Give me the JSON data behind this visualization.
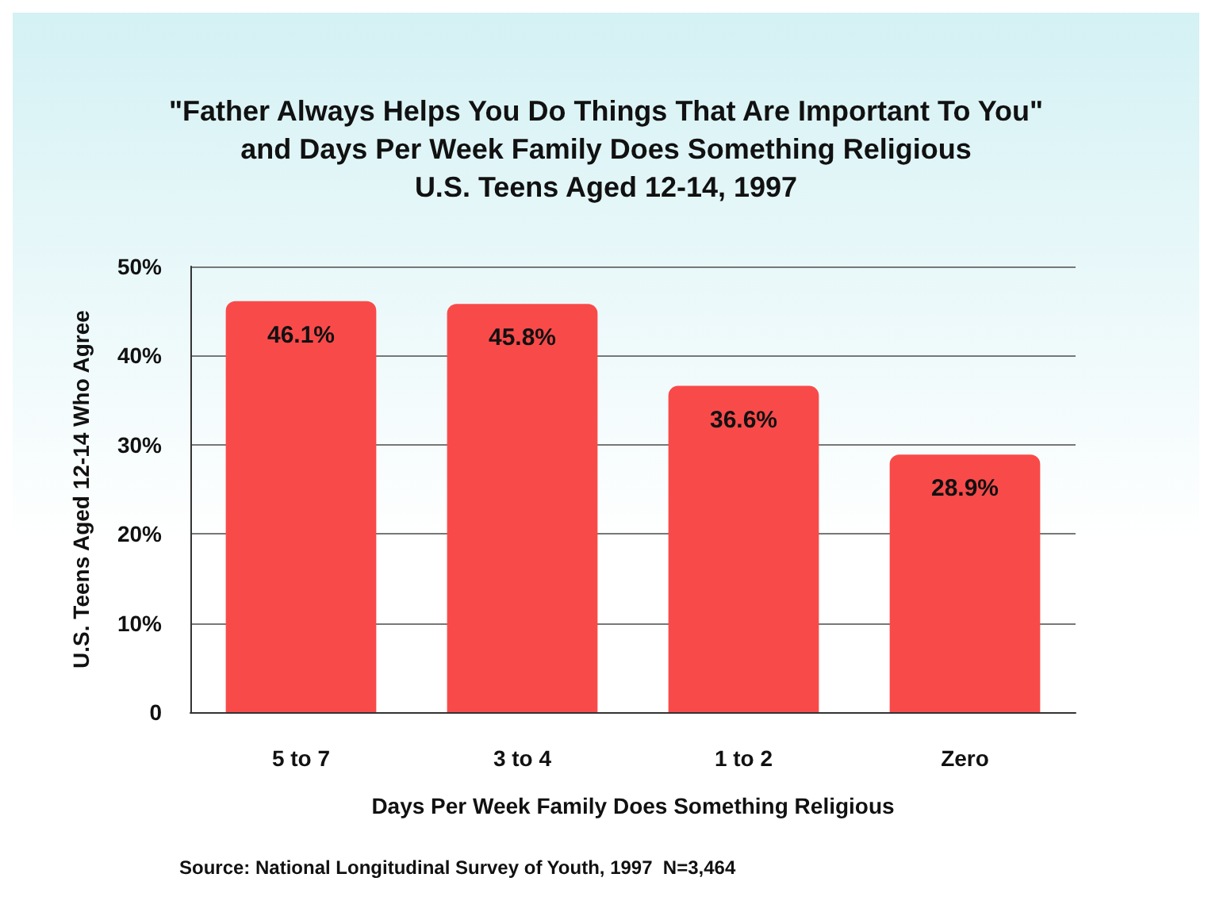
{
  "chart_data": {
    "type": "bar",
    "title": "\"Father Always Helps You Do Things That Are Important To You\"\nand Days Per Week Family Does Something Religious\nU.S. Teens Aged 12-14, 1997",
    "xlabel": "Days Per Week Family Does Something Religious",
    "ylabel": "U.S. Teens Aged 12-14 Who Agree",
    "categories": [
      "5 to 7",
      "3 to 4",
      "1 to 2",
      "Zero"
    ],
    "values": [
      46.1,
      45.8,
      36.6,
      28.9
    ],
    "value_labels": [
      "46.1%",
      "45.8%",
      "36.6%",
      "28.9%"
    ],
    "color": "#f94a4a",
    "ylim": [
      0,
      50
    ],
    "yticks": [
      0,
      {
        "value": 10,
        "label": "10%"
      },
      {
        "value": 20,
        "label": "20%"
      },
      {
        "value": 30,
        "label": "30%"
      },
      {
        "value": 40,
        "label": "40%"
      },
      {
        "value": 50,
        "label": "50%"
      }
    ],
    "grid": "y",
    "annotations": [
      "Source: National Longitudinal Survey of Youth, 1997  N=3,464"
    ]
  }
}
